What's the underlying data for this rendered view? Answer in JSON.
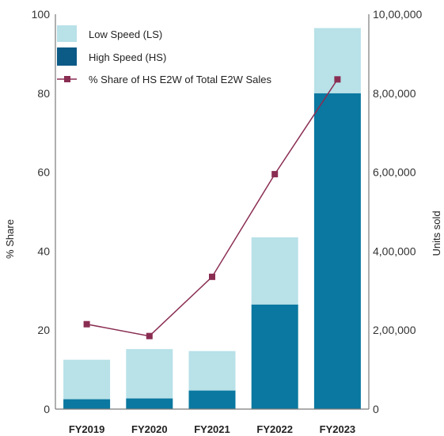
{
  "chart_data": {
    "type": "bar",
    "categories": [
      "FY2019",
      "FY2020",
      "FY2021",
      "FY2022",
      "FY2023"
    ],
    "series": [
      {
        "name": "Low Speed (LS)",
        "type": "bar",
        "axis": "right",
        "values": [
          100000,
          125000,
          100000,
          170000,
          165000
        ],
        "color": "#b8e1e8"
      },
      {
        "name": "High Speed (HS)",
        "type": "bar",
        "axis": "right",
        "values": [
          25000,
          27000,
          47000,
          265000,
          800000
        ],
        "color": "#0a78a0"
      },
      {
        "name": "% Share of HS E2W of Total E2W Sales",
        "type": "line",
        "axis": "left",
        "values": [
          21.5,
          18.5,
          33.5,
          59.5,
          83.5
        ],
        "color": "#8a2d52"
      }
    ],
    "ylabel_left": "% Share",
    "ylabel_right": "Units sold",
    "ylim_left": [
      0,
      100
    ],
    "ylim_right": [
      0,
      1000000
    ],
    "yticks_left": [
      "0",
      "20",
      "40",
      "60",
      "80",
      "100"
    ],
    "yticks_right": [
      "0",
      "2,00,000",
      "4,00,000",
      "6,00,000",
      "8,00,000",
      "10,00,000"
    ],
    "stacked": true,
    "grid": false,
    "legend_position": "top-left"
  }
}
